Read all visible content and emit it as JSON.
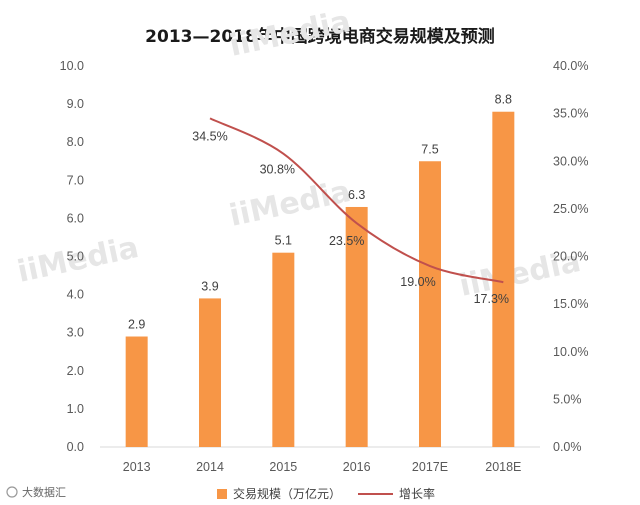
{
  "chart_data": {
    "type": "bar",
    "title": "2013—2018年中国跨境电商交易规模及预测",
    "categories": [
      "2013",
      "2014",
      "2015",
      "2016",
      "2017E",
      "2018E"
    ],
    "series": [
      {
        "name": "交易规模（万亿元）",
        "kind": "bar",
        "axis": "left",
        "color": "#F79646",
        "values": [
          2.9,
          3.9,
          5.1,
          6.3,
          7.5,
          8.8
        ],
        "labels": [
          "2.9",
          "3.9",
          "5.1",
          "6.3",
          "7.5",
          "8.8"
        ]
      },
      {
        "name": "增长率",
        "kind": "line",
        "axis": "right",
        "color": "#C0504D",
        "values": [
          null,
          34.5,
          30.8,
          23.5,
          19.0,
          17.3
        ],
        "labels": [
          "",
          "34.5%",
          "30.8%",
          "23.5%",
          "19.0%",
          "17.3%"
        ]
      }
    ],
    "y_left": {
      "min": 0,
      "max": 10,
      "ticks": [
        "0.0",
        "1.0",
        "2.0",
        "3.0",
        "4.0",
        "5.0",
        "6.0",
        "7.0",
        "8.0",
        "9.0",
        "10.0"
      ]
    },
    "y_right": {
      "min": 0,
      "max": 40,
      "ticks": [
        "0.0%",
        "5.0%",
        "10.0%",
        "15.0%",
        "20.0%",
        "25.0%",
        "30.0%",
        "35.0%",
        "40.0%"
      ]
    },
    "legend": {
      "position": "bottom"
    },
    "grid": false
  },
  "watermark": {
    "text": "大数据汇",
    "brand": "iiMedia"
  }
}
